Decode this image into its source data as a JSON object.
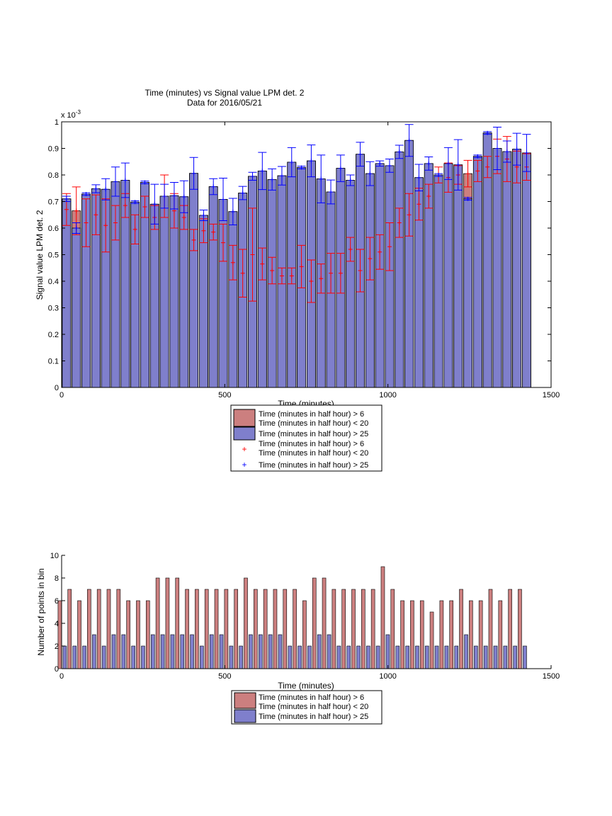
{
  "chart_data": [
    {
      "type": "bar",
      "title": "Time (minutes) vs Signal value LPM det. 2",
      "subtitle": "Data for 2016/05/21",
      "xlabel": "Time (minutes)",
      "ylabel": "Signal value LPM det. 2",
      "y_exponent": "x 10",
      "y_exponent_power": "-3",
      "xlim": [
        0,
        1500
      ],
      "ylim": [
        0,
        1
      ],
      "xticks": [
        "0",
        "500",
        "1000",
        "1500"
      ],
      "yticks": [
        "0",
        "0.1",
        "0.2",
        "0.3",
        "0.4",
        "0.5",
        "0.6",
        "0.7",
        "0.8",
        "0.9",
        "1"
      ],
      "grid": false,
      "legend_position": "below",
      "colors": {
        "red_bar": "#cc7f7f",
        "blue_bar": "#7f7fcc",
        "red_err": "#ff0000",
        "blue_err": "#0000ff"
      },
      "x": [
        15,
        45,
        75,
        105,
        135,
        165,
        195,
        225,
        255,
        285,
        315,
        345,
        375,
        405,
        435,
        465,
        495,
        525,
        555,
        585,
        615,
        645,
        675,
        705,
        735,
        765,
        795,
        825,
        855,
        885,
        915,
        945,
        975,
        1005,
        1035,
        1065,
        1095,
        1125,
        1155,
        1185,
        1215,
        1245,
        1275,
        1305,
        1335,
        1365,
        1395,
        1425
      ],
      "series": [
        {
          "name": "Time (minutes in half hour) > 6 Time (minutes in half hour) < 20",
          "values": [
            0.67,
            0.665,
            0.62,
            0.65,
            0.61,
            0.62,
            0.685,
            0.595,
            0.68,
            0.64,
            0.72,
            0.665,
            0.64,
            0.555,
            0.59,
            0.585,
            0.545,
            0.47,
            0.43,
            0.5,
            0.465,
            0.44,
            0.42,
            0.42,
            0.455,
            0.4,
            0.41,
            0.43,
            0.43,
            0.52,
            0.44,
            0.485,
            0.51,
            0.53,
            0.62,
            0.65,
            0.69,
            0.72,
            0.8,
            0.79,
            0.8,
            0.805,
            0.815,
            0.83,
            0.87,
            0.86,
            0.83,
            0.83
          ],
          "err": [
            0.06,
            0.09,
            0.09,
            0.075,
            0.1,
            0.065,
            0.045,
            0.055,
            0.04,
            0.045,
            0.08,
            0.065,
            0.045,
            0.04,
            0.045,
            0.03,
            0.07,
            0.065,
            0.09,
            0.175,
            0.06,
            0.05,
            0.03,
            0.03,
            0.08,
            0.08,
            0.055,
            0.075,
            0.075,
            0.045,
            0.08,
            0.08,
            0.065,
            0.09,
            0.055,
            0.08,
            0.06,
            0.045,
            0.03,
            0.055,
            0.035,
            0.05,
            0.04,
            0.04,
            0.065,
            0.085,
            0.06,
            0.05
          ],
          "bar_height": [
            0.71,
            0.665,
            0.728,
            0.748,
            0.746,
            0.775,
            0.78,
            0.698,
            0.772,
            0.69,
            0.72,
            0.722,
            0.718,
            0.806,
            0.648,
            0.756,
            0.708,
            0.662,
            0.732,
            0.795,
            0.815,
            0.783,
            0.797,
            0.848,
            0.828,
            0.853,
            0.785,
            0.736,
            0.825,
            0.78,
            0.878,
            0.805,
            0.843,
            0.835,
            0.887,
            0.93,
            0.79,
            0.843,
            0.8,
            0.843,
            0.838,
            0.805,
            0.87,
            0.958,
            0.9,
            0.888,
            0.897,
            0.883
          ]
        },
        {
          "name": "Time (minutes in half hour) > 25",
          "values": [
            0.71,
            0.6,
            0.728,
            0.748,
            0.746,
            0.775,
            0.78,
            0.698,
            0.772,
            0.69,
            0.72,
            0.722,
            0.718,
            0.806,
            0.648,
            0.756,
            0.708,
            0.662,
            0.732,
            0.795,
            0.815,
            0.783,
            0.797,
            0.848,
            0.828,
            0.853,
            0.785,
            0.736,
            0.825,
            0.78,
            0.878,
            0.805,
            0.843,
            0.835,
            0.887,
            0.93,
            0.79,
            0.843,
            0.8,
            0.843,
            0.838,
            0.71,
            0.87,
            0.958,
            0.9,
            0.888,
            0.897,
            0.883
          ],
          "err": [
            0.01,
            0.02,
            0.005,
            0.015,
            0.04,
            0.055,
            0.065,
            0.005,
            0.005,
            0.075,
            0.045,
            0.05,
            0.06,
            0.06,
            0.02,
            0.03,
            0.08,
            0.05,
            0.025,
            0.015,
            0.07,
            0.04,
            0.035,
            0.055,
            0.005,
            0.06,
            0.09,
            0.045,
            0.05,
            0.02,
            0.045,
            0.045,
            0.01,
            0.025,
            0.025,
            0.06,
            0.05,
            0.025,
            0.005,
            0.06,
            0.095,
            0.005,
            0.005,
            0.005,
            0.08,
            0.04,
            0.06,
            0.07
          ]
        }
      ]
    },
    {
      "type": "bar",
      "xlabel": "Time (minutes)",
      "ylabel": "Number of points in bin",
      "xlim": [
        0,
        1500
      ],
      "ylim": [
        0,
        10
      ],
      "xticks": [
        "0",
        "500",
        "1000",
        "1500"
      ],
      "yticks": [
        "0",
        "2",
        "4",
        "6",
        "8",
        "10"
      ],
      "grid": false,
      "legend_position": "below",
      "x": [
        15,
        45,
        75,
        105,
        135,
        165,
        195,
        225,
        255,
        285,
        315,
        345,
        375,
        405,
        435,
        465,
        495,
        525,
        555,
        585,
        615,
        645,
        675,
        705,
        735,
        765,
        795,
        825,
        855,
        885,
        915,
        945,
        975,
        1005,
        1035,
        1065,
        1095,
        1125,
        1155,
        1185,
        1215,
        1245,
        1275,
        1305,
        1335,
        1365,
        1395,
        1425
      ],
      "series": [
        {
          "name": "Time (minutes in half hour) > 6 Time (minutes in half hour) < 20",
          "values": [
            6,
            7,
            6,
            7,
            7,
            7,
            7,
            6,
            6,
            6,
            8,
            8,
            8,
            7,
            7,
            7,
            7,
            7,
            7,
            8,
            7,
            7,
            7,
            7,
            7,
            6,
            8,
            8,
            7,
            7,
            7,
            7,
            7,
            9,
            7,
            6,
            6,
            6,
            5,
            6,
            6,
            7,
            6,
            6,
            7,
            6,
            7,
            7
          ]
        },
        {
          "name": "Time (minutes in half hour) > 25",
          "values": [
            2,
            2,
            2,
            3,
            2,
            3,
            3,
            2,
            2,
            3,
            3,
            3,
            3,
            3,
            2,
            3,
            3,
            2,
            2,
            3,
            3,
            3,
            3,
            2,
            2,
            2,
            3,
            3,
            2,
            2,
            2,
            2,
            2,
            3,
            2,
            2,
            2,
            2,
            2,
            2,
            2,
            3,
            2,
            2,
            2,
            2,
            2,
            2
          ]
        }
      ]
    }
  ],
  "legends": {
    "top": {
      "bar_red_line1": "Time (minutes in half hour) > 6",
      "bar_red_line2": "Time (minutes in half hour) < 20",
      "bar_blue": "Time (minutes in half hour) > 25",
      "err_red_line1": "Time (minutes in half hour) > 6",
      "err_red_line2": "Time (minutes in half hour) < 20",
      "err_blue": "Time (minutes in half hour) > 25"
    },
    "bottom": {
      "bar_red_line1": "Time (minutes in half hour) > 6",
      "bar_red_line2": "Time (minutes in half hour) < 20",
      "bar_blue": "Time (minutes in half hour) > 25"
    }
  }
}
